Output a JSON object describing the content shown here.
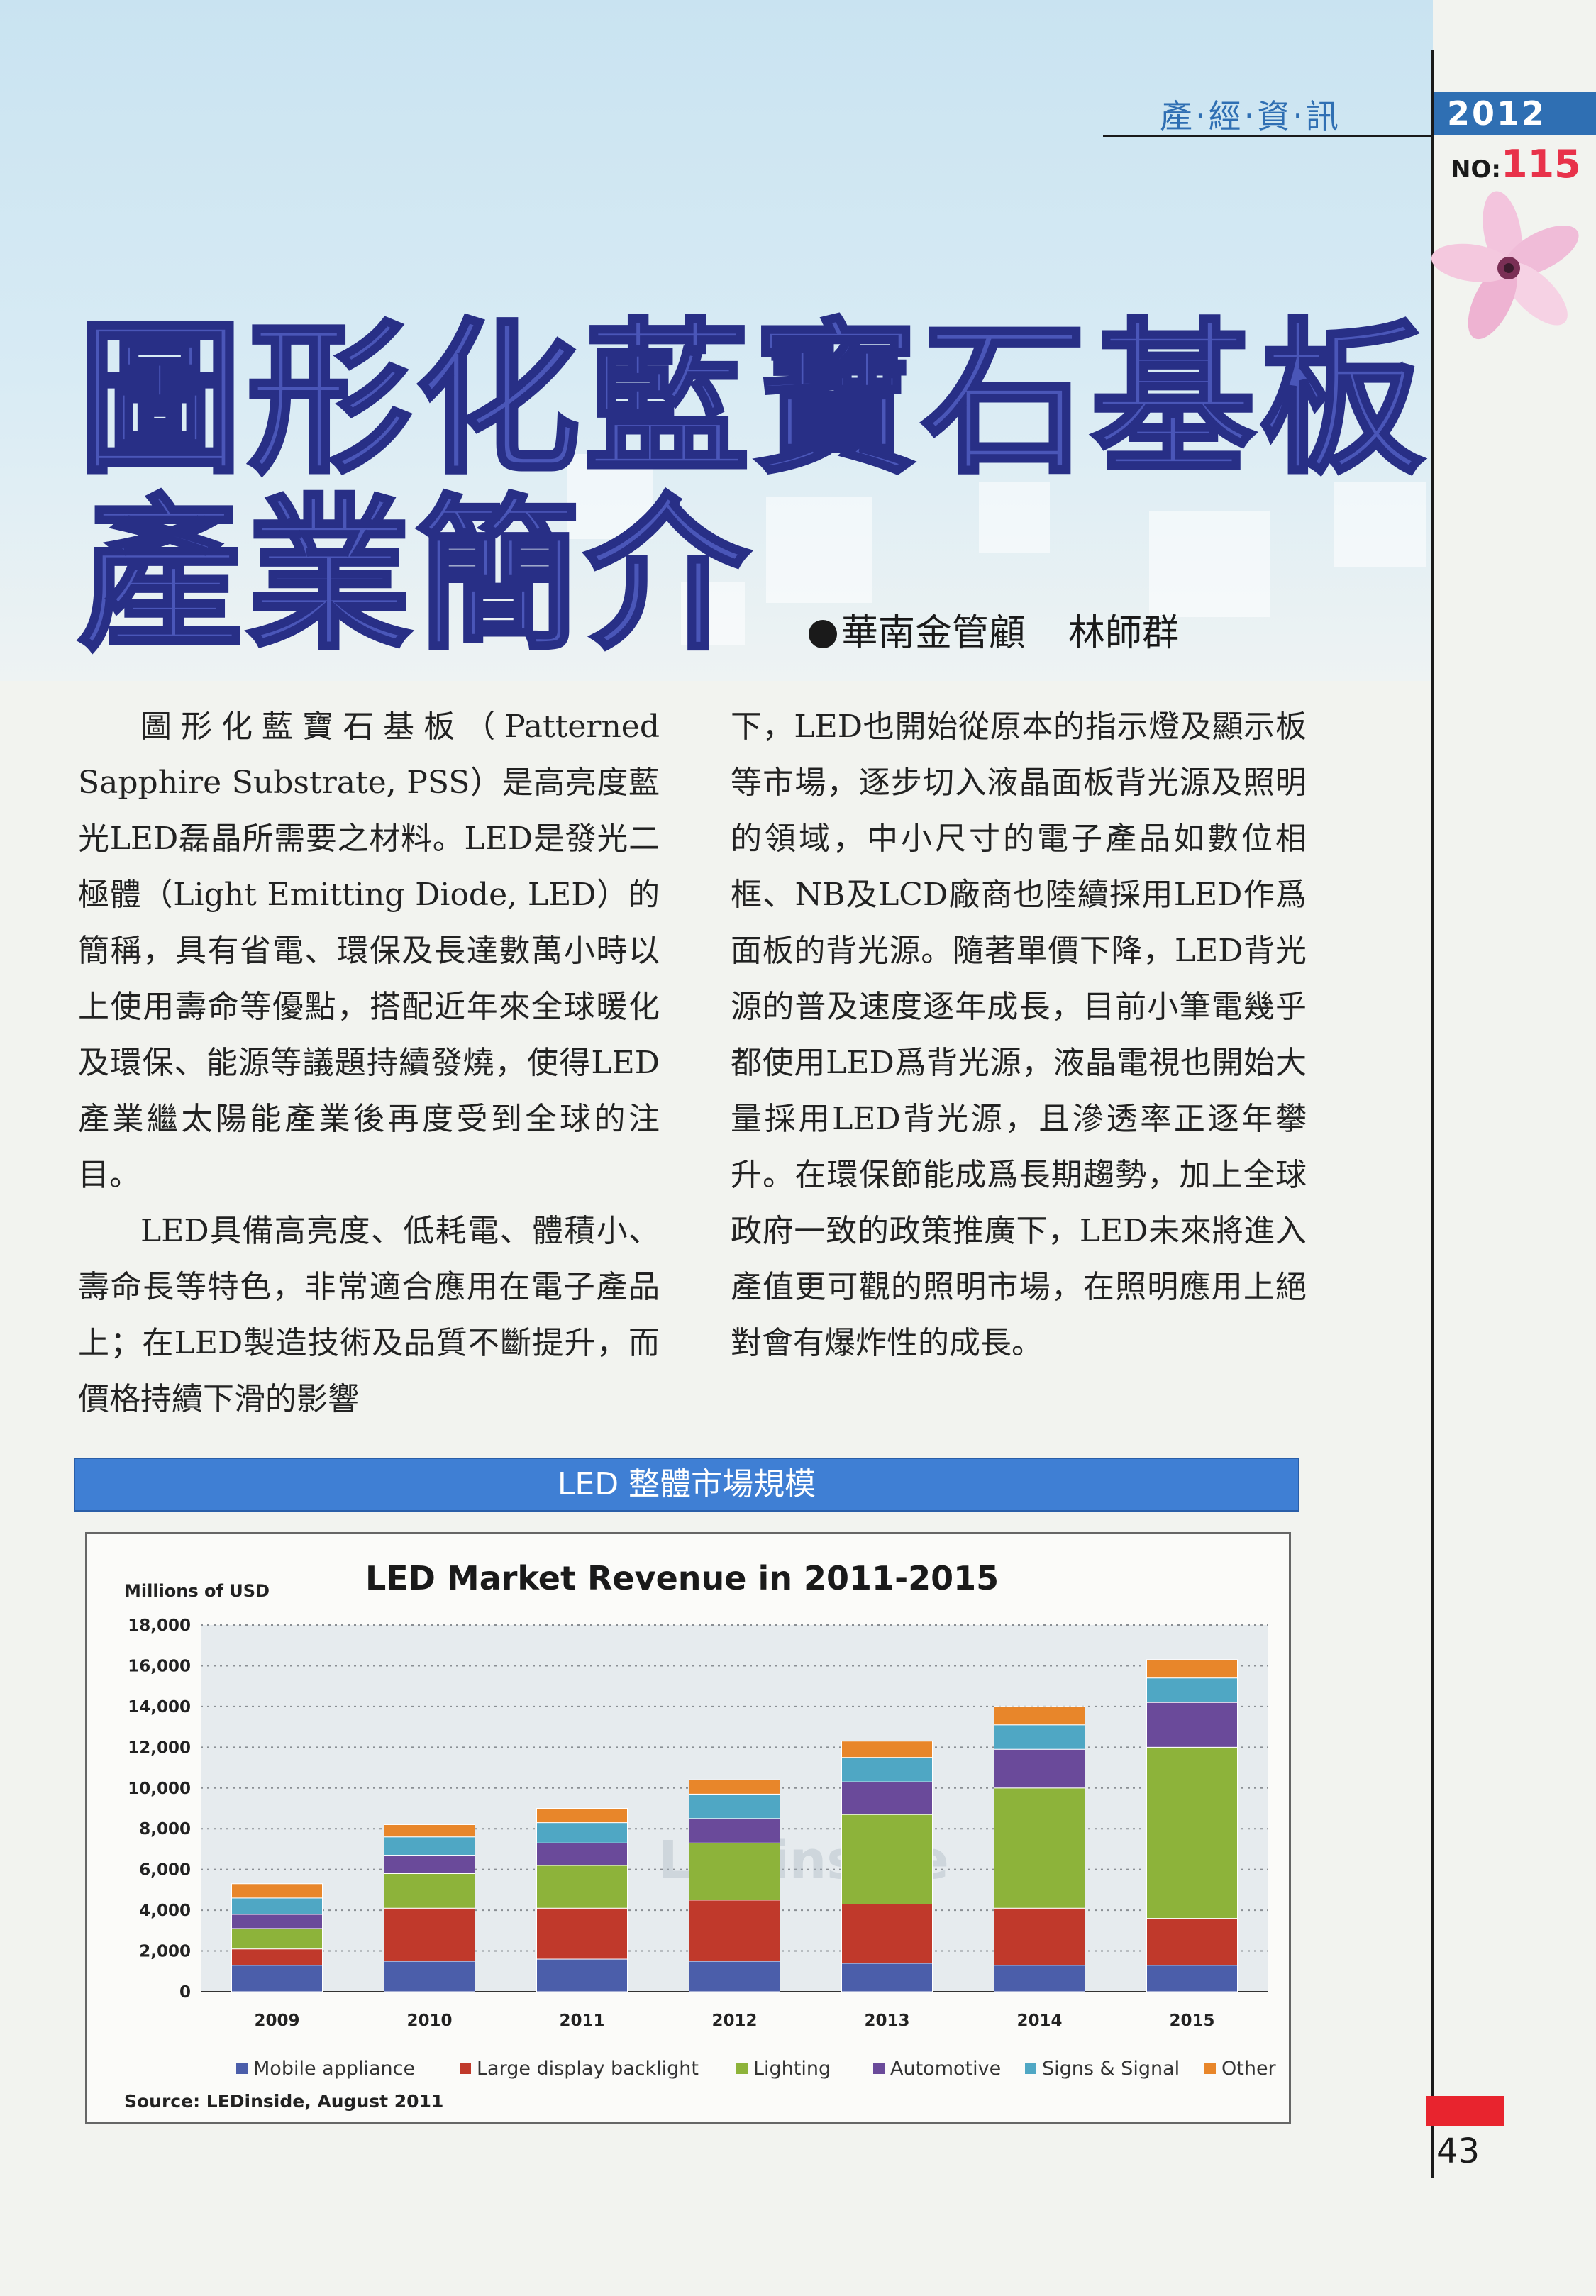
{
  "header": {
    "categories": "產‧經‧資‧訊",
    "year": "2012",
    "issue_label": "NO:",
    "issue_number": "115",
    "accent_color": "#2f6fb3"
  },
  "article": {
    "title_line1": "圖形化藍寶石基板",
    "title_line2": "產業簡介",
    "author_org": "華南金管顧",
    "author_name": "林師群",
    "title_color": "#4a56b8",
    "paragraphs_left": [
      "圖形化藍寶石基板（Patterned Sapphire Substrate, PSS）是高亮度藍光LED磊晶所需要之材料。LED是發光二極體（Light Emitting Diode, LED）的簡稱，具有省電、環保及長達數萬小時以上使用壽命等優點，搭配近年來全球暖化及環保、能源等議題持續發燒，使得LED產業繼太陽能產業後再度受到全球的注目。",
      "LED具備高亮度、低耗電、體積小、壽命長等特色，非常適合應用在電子產品上；在LED製造技術及品質不斷提升，而價格持續下滑的影響"
    ],
    "paragraphs_right": [
      "下，LED也開始從原本的指示燈及顯示板等市場，逐步切入液晶面板背光源及照明的領域，中小尺寸的電子產品如數位相框、NB及LCD廠商也陸續採用LED作爲面板的背光源。隨著單價下降，LED背光源的普及速度逐年成長，目前小筆電幾乎都使用LED爲背光源，液晶電視也開始大量採用LED背光源，且滲透率正逐年攀升。在環保節能成爲長期趨勢，加上全球政府一致的政策推廣下，LED未來將進入產值更可觀的照明市場，在照明應用上絕對會有爆炸性的成長。"
    ]
  },
  "chart_section": {
    "band_title": "LED 整體市場規模",
    "band_color": "#3f7fd4"
  },
  "chart_data": {
    "type": "bar",
    "stacked": true,
    "title": "LED Market Revenue in 2011-2015",
    "ylabel": "Millions of USD",
    "xlabel": "",
    "ylim": [
      0,
      18000
    ],
    "yticks": [
      "0",
      "2,000",
      "4,000",
      "6,000",
      "8,000",
      "10,000",
      "12,000",
      "14,000",
      "16,000",
      "18,000"
    ],
    "grid": true,
    "legend_position": "bottom",
    "categories": [
      "2009",
      "2010",
      "2011",
      "2012",
      "2013",
      "2014",
      "2015"
    ],
    "series": [
      {
        "name": "Mobile appliance",
        "color": "#4b5eaa",
        "values": [
          1300,
          1500,
          1600,
          1500,
          1400,
          1300,
          1300
        ]
      },
      {
        "name": "Large display backlight",
        "color": "#c0392b",
        "values": [
          800,
          2600,
          2500,
          3000,
          2900,
          2800,
          2300
        ]
      },
      {
        "name": "Lighting",
        "color": "#8db33a",
        "values": [
          1000,
          1700,
          2100,
          2800,
          4400,
          5900,
          8400
        ]
      },
      {
        "name": "Automotive",
        "color": "#6a4a9a",
        "values": [
          700,
          900,
          1100,
          1200,
          1600,
          1900,
          2200
        ]
      },
      {
        "name": "Signs & Signal",
        "color": "#4fa7c4",
        "values": [
          800,
          900,
          1000,
          1200,
          1200,
          1200,
          1200
        ]
      },
      {
        "name": "Other",
        "color": "#e8862a",
        "values": [
          700,
          600,
          700,
          700,
          800,
          900,
          900
        ]
      }
    ],
    "source": "Source: LEDinside, August 2011",
    "watermark": "LEDinside"
  },
  "page": {
    "number": "43",
    "mark_color": "#e8242e"
  }
}
